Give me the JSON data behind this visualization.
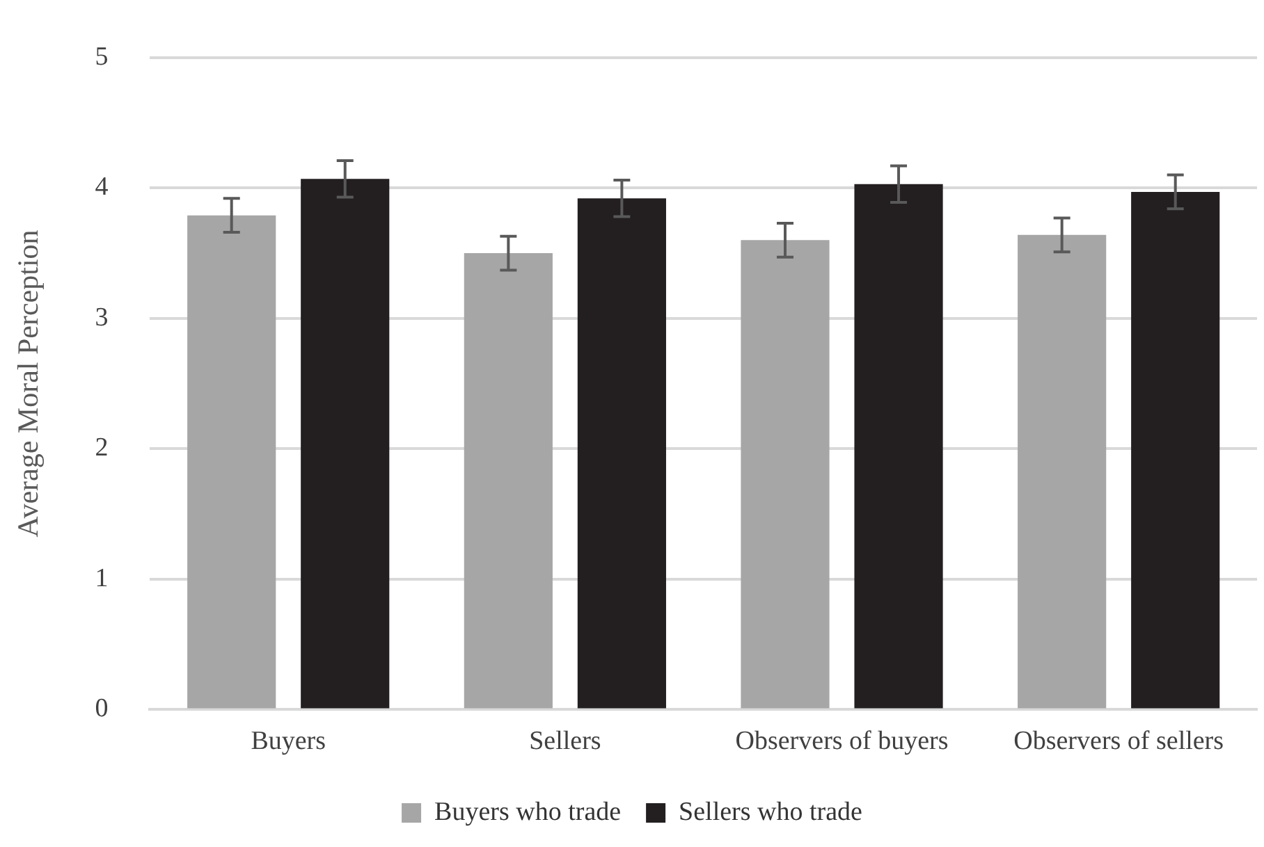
{
  "chart_data": {
    "type": "bar",
    "ylabel": "Average Moral Perception",
    "categories": [
      "Buyers",
      "Sellers",
      "Observers of buyers",
      "Observers of sellers"
    ],
    "series": [
      {
        "name": "Buyers who trade",
        "color": "#a6a6a6",
        "values": [
          3.79,
          3.5,
          3.6,
          3.64
        ],
        "errors": [
          0.13,
          0.13,
          0.13,
          0.13
        ]
      },
      {
        "name": "Sellers who trade",
        "color": "#231f20",
        "values": [
          4.07,
          3.92,
          4.03,
          3.97
        ],
        "errors": [
          0.14,
          0.14,
          0.14,
          0.13
        ]
      }
    ],
    "ylim": [
      0,
      5
    ],
    "yticks": [
      0,
      1,
      2,
      3,
      4,
      5
    ],
    "grid": "y",
    "legend": "bottom"
  }
}
